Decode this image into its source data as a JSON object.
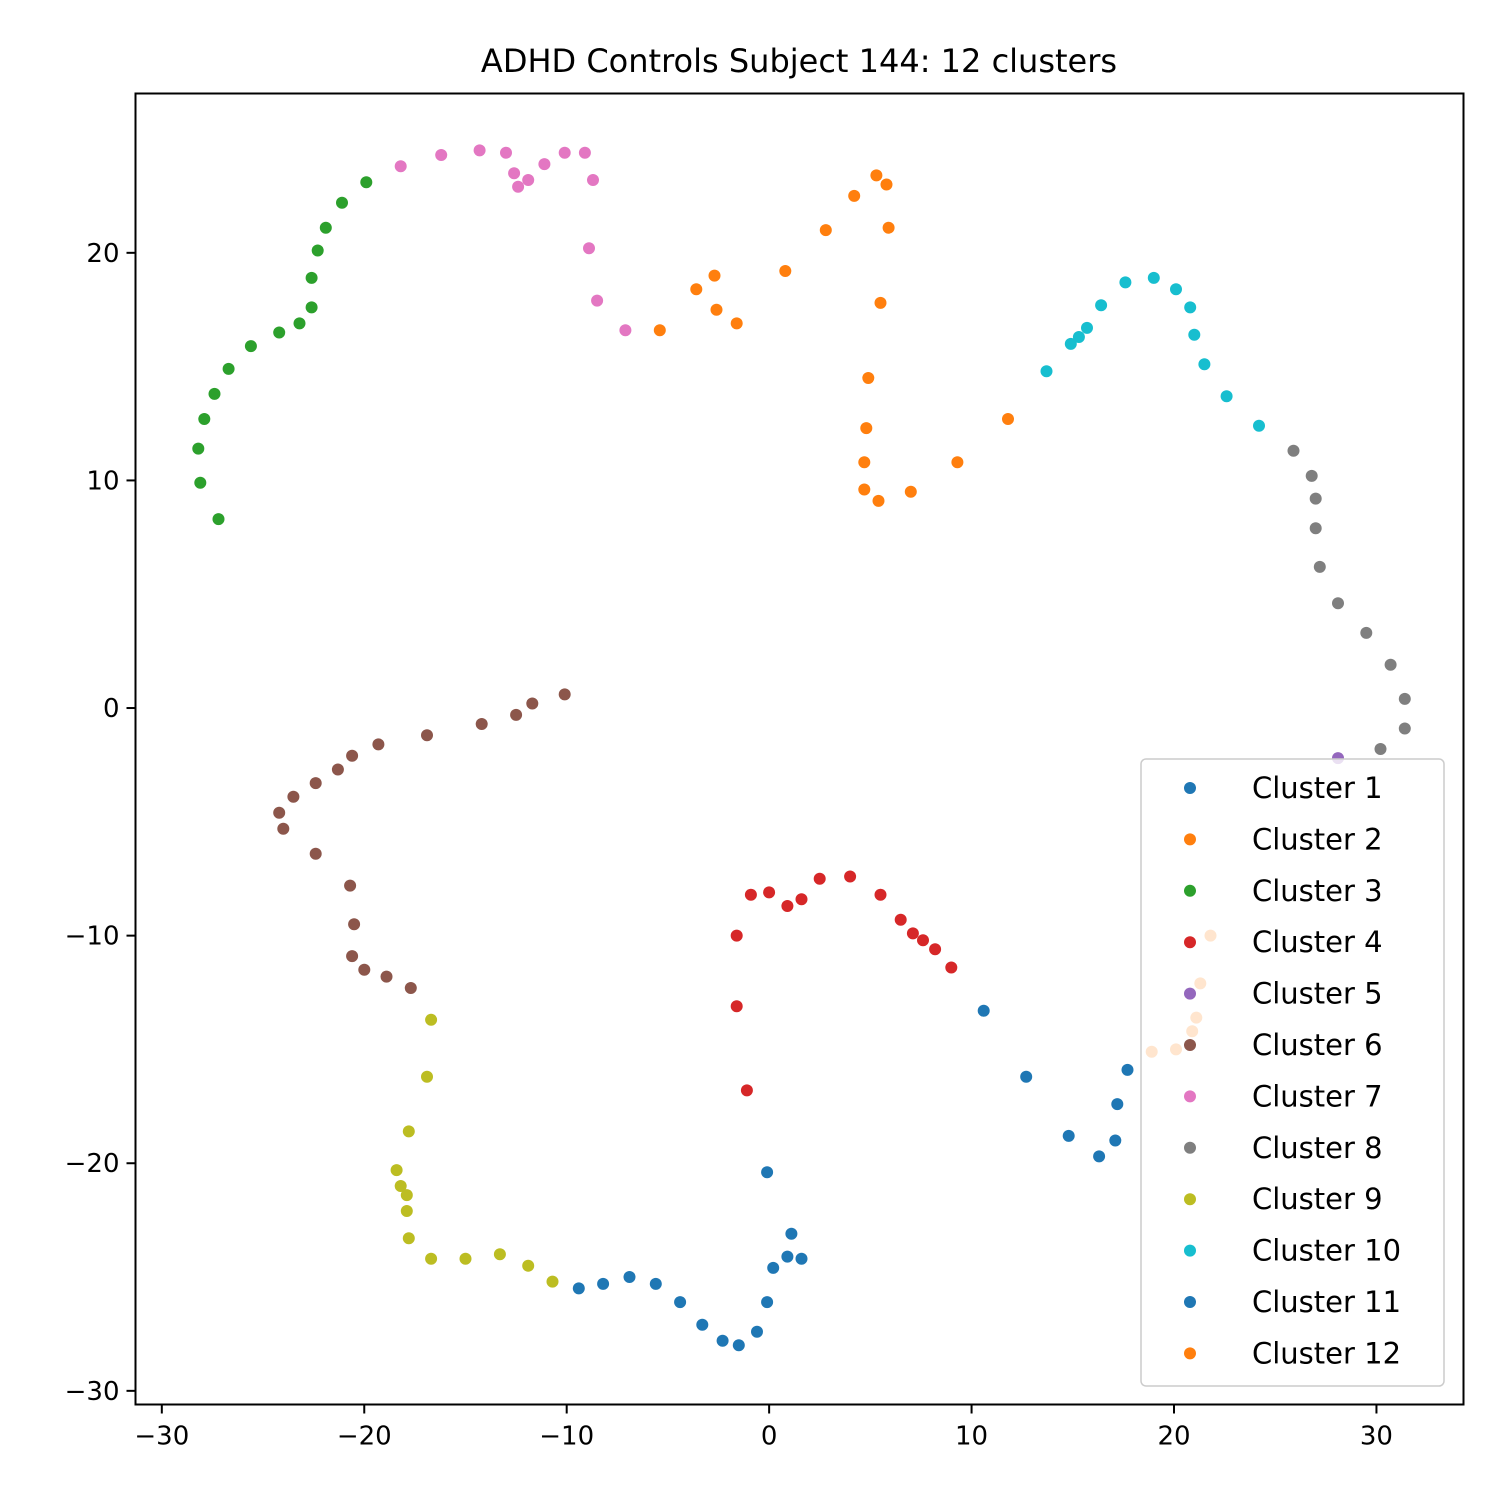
{
  "chart_data": {
    "type": "scatter",
    "title": "ADHD Controls Subject 144: 12 clusters",
    "xlabel": "",
    "ylabel": "",
    "xlim": [
      -31.3,
      34.3
    ],
    "ylim": [
      -30.6,
      27.0
    ],
    "xticks": [
      -30,
      -20,
      -10,
      0,
      10,
      20,
      30
    ],
    "yticks": [
      -30,
      -20,
      -10,
      0,
      10,
      20
    ],
    "xtick_labels": [
      "−30",
      "−20",
      "−10",
      "0",
      "10",
      "20",
      "30"
    ],
    "ytick_labels": [
      "−30",
      "−20",
      "−10",
      "0",
      "10",
      "20"
    ],
    "grid": false,
    "legend_position": "lower-right",
    "series": [
      {
        "name": "Cluster 1",
        "color": "#1f77b4",
        "x": [
          10.6,
          12.7,
          14.8,
          16.3,
          17.1,
          17.2,
          17.7
        ],
        "y": [
          -13.3,
          -16.2,
          -18.8,
          -19.7,
          -19.0,
          -17.4,
          -15.9
        ]
      },
      {
        "name": "Cluster 2",
        "color": "#ff7f0e",
        "x": [
          -5.4,
          -3.6,
          -2.7,
          -2.6,
          -1.6,
          0.8,
          2.8,
          4.2,
          5.3,
          5.8,
          5.9,
          5.5,
          4.9,
          4.8,
          4.7,
          4.7,
          5.4,
          7.0,
          9.3,
          11.8
        ],
        "y": [
          16.6,
          18.4,
          19.0,
          17.5,
          16.9,
          19.2,
          21.0,
          22.5,
          23.4,
          23.0,
          21.1,
          17.8,
          14.5,
          12.3,
          10.8,
          9.6,
          9.1,
          9.5,
          10.8,
          12.7
        ]
      },
      {
        "name": "Cluster 3",
        "color": "#2ca02c",
        "x": [
          -27.2,
          -28.1,
          -28.2,
          -27.9,
          -27.4,
          -26.7,
          -25.6,
          -24.2,
          -23.2,
          -22.6,
          -22.6,
          -22.3,
          -21.9,
          -21.1,
          -19.9
        ],
        "y": [
          8.3,
          9.9,
          11.4,
          12.7,
          13.8,
          14.9,
          15.9,
          16.5,
          16.9,
          17.6,
          18.9,
          20.1,
          21.1,
          22.2,
          23.1
        ]
      },
      {
        "name": "Cluster 4",
        "color": "#d62728",
        "x": [
          -1.1,
          -1.6,
          -1.6,
          -0.9,
          0.0,
          0.9,
          1.6,
          2.5,
          4.0,
          5.5,
          6.5,
          7.1,
          7.6,
          8.2,
          9.0
        ],
        "y": [
          -16.8,
          -13.1,
          -10.0,
          -8.2,
          -8.1,
          -8.7,
          -8.4,
          -7.5,
          -7.4,
          -8.2,
          -9.3,
          -9.9,
          -10.2,
          -10.6,
          -11.4
        ]
      },
      {
        "name": "Cluster 5",
        "color": "#9467bd",
        "x": [
          28.1
        ],
        "y": [
          -2.2
        ]
      },
      {
        "name": "Cluster 6",
        "color": "#8c564b",
        "x": [
          -10.1,
          -11.7,
          -12.5,
          -14.2,
          -16.9,
          -19.3,
          -20.6,
          -21.3,
          -22.4,
          -23.5,
          -24.2,
          -24.0,
          -22.4,
          -20.7,
          -20.5,
          -20.6,
          -20.0,
          -18.9,
          -17.7
        ],
        "y": [
          0.6,
          0.2,
          -0.3,
          -0.7,
          -1.2,
          -1.6,
          -2.1,
          -2.7,
          -3.3,
          -3.9,
          -4.6,
          -5.3,
          -6.4,
          -7.8,
          -9.5,
          -10.9,
          -11.5,
          -11.8,
          -12.3
        ]
      },
      {
        "name": "Cluster 7",
        "color": "#e377c2",
        "x": [
          -18.2,
          -16.2,
          -14.3,
          -13.0,
          -12.6,
          -12.4,
          -11.9,
          -11.1,
          -10.1,
          -9.1,
          -8.7,
          -8.9,
          -8.5,
          -7.1
        ],
        "y": [
          23.8,
          24.3,
          24.5,
          24.4,
          23.5,
          22.9,
          23.2,
          23.9,
          24.4,
          24.4,
          23.2,
          20.2,
          17.9,
          16.6
        ]
      },
      {
        "name": "Cluster 8",
        "color": "#7f7f7f",
        "x": [
          25.9,
          26.8,
          27.0,
          27.0,
          27.2,
          28.1,
          29.5,
          30.7,
          31.4,
          31.4,
          30.2
        ],
        "y": [
          11.3,
          10.2,
          9.2,
          7.9,
          6.2,
          4.6,
          3.3,
          1.9,
          0.4,
          -0.9,
          -1.8
        ]
      },
      {
        "name": "Cluster 9",
        "color": "#bcbd22",
        "x": [
          -16.7,
          -16.9,
          -17.8,
          -18.4,
          -18.2,
          -17.9,
          -17.9,
          -17.8,
          -16.7,
          -15.0,
          -13.3,
          -11.9,
          -10.7
        ],
        "y": [
          -13.7,
          -16.2,
          -18.6,
          -20.3,
          -21.0,
          -21.4,
          -22.1,
          -23.3,
          -24.2,
          -24.2,
          -24.0,
          -24.5,
          -25.2
        ]
      },
      {
        "name": "Cluster 10",
        "color": "#17becf",
        "x": [
          13.7,
          14.9,
          15.3,
          15.7,
          16.4,
          17.6,
          19.0,
          20.1,
          20.8,
          21.0,
          21.5,
          22.6,
          24.2
        ],
        "y": [
          14.8,
          16.0,
          16.3,
          16.7,
          17.7,
          18.7,
          18.9,
          18.4,
          17.6,
          16.4,
          15.1,
          13.7,
          12.4
        ]
      },
      {
        "name": "Cluster 11",
        "color": "#1f77b4",
        "x": [
          -9.4,
          -8.2,
          -6.9,
          -5.6,
          -4.4,
          -3.3,
          -2.3,
          -1.5,
          -0.6,
          -0.1,
          0.2,
          0.9,
          1.1,
          1.6,
          -0.1
        ],
        "y": [
          -25.5,
          -25.3,
          -25.0,
          -25.3,
          -26.1,
          -27.1,
          -27.8,
          -28.0,
          -27.4,
          -26.1,
          -24.6,
          -24.1,
          -23.1,
          -24.2,
          -20.4
        ]
      },
      {
        "name": "Cluster 12",
        "color": "#ff7f0e",
        "x": [
          20.1,
          20.9,
          21.1,
          21.3,
          21.8,
          18.9
        ],
        "y": [
          -15.0,
          -14.2,
          -13.6,
          -12.1,
          -10.0,
          -15.1
        ]
      }
    ]
  }
}
